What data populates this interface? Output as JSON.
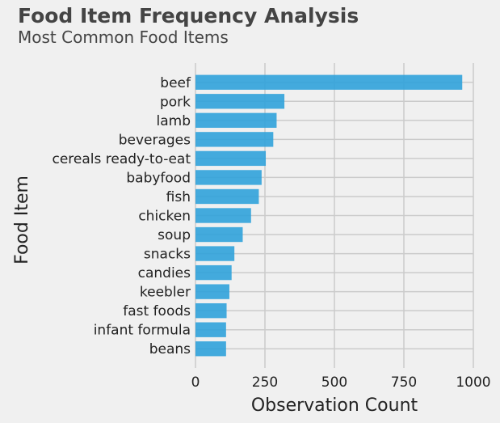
{
  "chart_data": {
    "type": "bar",
    "orientation": "horizontal",
    "title": "Food Item Frequency Analysis",
    "subtitle": "Most Common Food Items",
    "xlabel": "Observation Count",
    "ylabel": "Food Item",
    "xlim": [
      0,
      1000
    ],
    "xticks": [
      0,
      250,
      500,
      750,
      1000
    ],
    "grid": true,
    "bar_color": "#30a2da",
    "categories": [
      "beef",
      "pork",
      "lamb",
      "beverages",
      "cereals ready-to-eat",
      "babyfood",
      "fish",
      "chicken",
      "soup",
      "snacks",
      "candies",
      "keebler",
      "fast foods",
      "infant formula",
      "beans"
    ],
    "values": [
      960,
      320,
      292,
      280,
      253,
      238,
      228,
      200,
      170,
      140,
      130,
      122,
      112,
      110,
      110
    ]
  }
}
